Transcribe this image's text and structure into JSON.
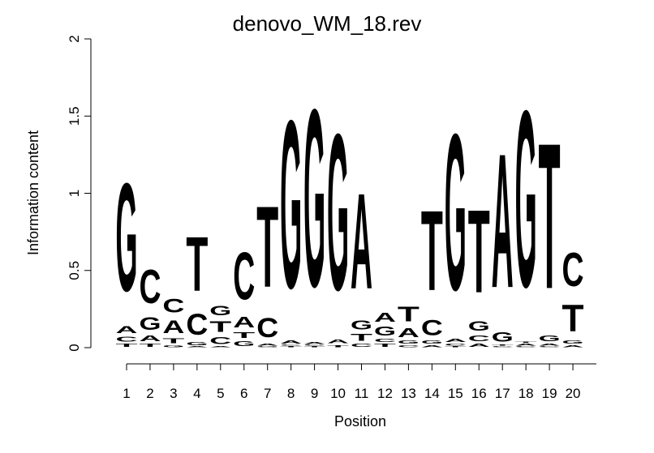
{
  "chart_data": {
    "type": "sequence-logo",
    "title": "denovo_WM_18.rev",
    "xlabel": "Position",
    "ylabel": "Information content",
    "ylim": [
      0,
      2
    ],
    "y_ticks": [
      "0",
      "0.5",
      "1",
      "1.5",
      "2"
    ],
    "positions": [
      "1",
      "2",
      "3",
      "4",
      "5",
      "6",
      "7",
      "8",
      "9",
      "10",
      "11",
      "12",
      "13",
      "14",
      "15",
      "16",
      "17",
      "18",
      "19",
      "20"
    ],
    "colors": {
      "A": "#00ee00",
      "C": "#0000ee",
      "G": "#f5a000",
      "T": "#ff0000"
    },
    "stacks": [
      [
        [
          "T",
          0.03
        ],
        [
          "C",
          0.05
        ],
        [
          "A",
          0.07
        ],
        [
          "G",
          1.12
        ]
      ],
      [
        [
          "T",
          0.03
        ],
        [
          "A",
          0.06
        ],
        [
          "G",
          0.13
        ],
        [
          "C",
          0.35
        ]
      ],
      [
        [
          "G",
          0.02
        ],
        [
          "T",
          0.05
        ],
        [
          "A",
          0.13
        ],
        [
          "C",
          0.14
        ]
      ],
      [
        [
          "A",
          0.01
        ],
        [
          "G",
          0.03
        ],
        [
          "C",
          0.22
        ],
        [
          "T",
          0.56
        ]
      ],
      [
        [
          "A",
          0.01
        ],
        [
          "C",
          0.07
        ],
        [
          "T",
          0.11
        ],
        [
          "G",
          0.1
        ]
      ],
      [
        [
          "G",
          0.05
        ],
        [
          "T",
          0.06
        ],
        [
          "A",
          0.11
        ],
        [
          "C",
          0.49
        ]
      ],
      [
        [
          "G",
          0.01
        ],
        [
          "A",
          0.02
        ],
        [
          "C",
          0.2
        ],
        [
          "T",
          0.84
        ]
      ],
      [
        [
          "T",
          0.01
        ],
        [
          "C",
          0.01
        ],
        [
          "A",
          0.03
        ],
        [
          "G",
          1.74
        ]
      ],
      [
        [
          "T",
          0.01
        ],
        [
          "C",
          0.01
        ],
        [
          "A",
          0.02
        ],
        [
          "G",
          1.84
        ]
      ],
      [
        [
          "T",
          0.02
        ],
        [
          "A",
          0.04
        ],
        [
          "G",
          1.62
        ]
      ],
      [
        [
          "C",
          0.03
        ],
        [
          "T",
          0.07
        ],
        [
          "G",
          0.09
        ],
        [
          "A",
          0.99
        ]
      ],
      [
        [
          "T",
          0.03
        ],
        [
          "C",
          0.03
        ],
        [
          "G",
          0.09
        ],
        [
          "A",
          0.09
        ]
      ],
      [
        [
          "C",
          0.02
        ],
        [
          "G",
          0.03
        ],
        [
          "A",
          0.09
        ],
        [
          "T",
          0.15
        ]
      ],
      [
        [
          "A",
          0.02
        ],
        [
          "G",
          0.03
        ],
        [
          "C",
          0.16
        ],
        [
          "T",
          0.83
        ]
      ],
      [
        [
          "T",
          0.01
        ],
        [
          "C",
          0.02
        ],
        [
          "A",
          0.03
        ],
        [
          "G",
          1.62
        ]
      ],
      [
        [
          "A",
          0.03
        ],
        [
          "C",
          0.06
        ],
        [
          "G",
          0.1
        ],
        [
          "T",
          0.86
        ]
      ],
      [
        [
          "C",
          0.01
        ],
        [
          "T",
          0.01
        ],
        [
          "G",
          0.1
        ],
        [
          "A",
          1.39
        ]
      ],
      [
        [
          "C",
          0.01
        ],
        [
          "A",
          0.02
        ],
        [
          "T",
          0.01
        ],
        [
          "G",
          1.83
        ]
      ],
      [
        [
          "C",
          0.01
        ],
        [
          "A",
          0.02
        ],
        [
          "G",
          0.06
        ],
        [
          "T",
          1.51
        ]
      ],
      [
        [
          "A",
          0.02
        ],
        [
          "G",
          0.03
        ],
        [
          "T",
          0.28
        ],
        [
          "C",
          0.35
        ]
      ]
    ]
  }
}
